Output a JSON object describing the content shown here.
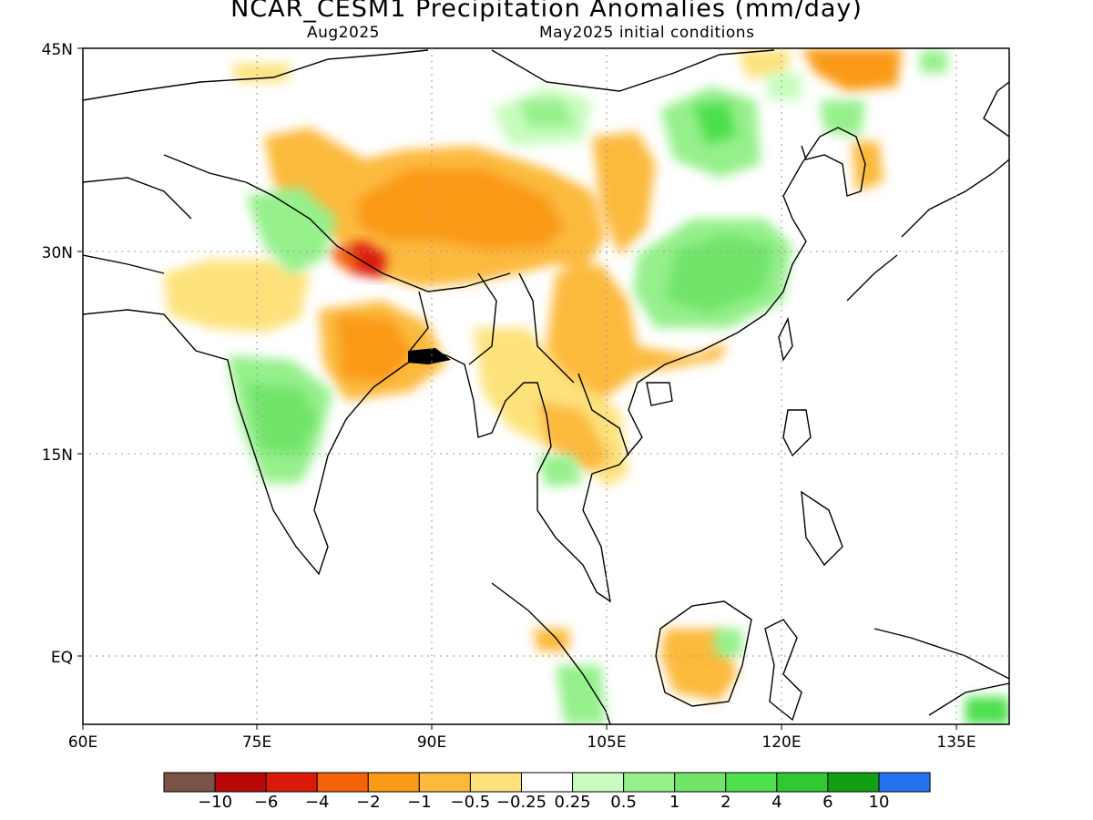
{
  "title": "NCAR_CESM1 Precipitation Anomalies (mm/day)",
  "subtitle_left": "Aug2025",
  "subtitle_right": "May2025 initial conditions",
  "map": {
    "lon_range": [
      60,
      140
    ],
    "lat_range": [
      -5,
      45
    ],
    "lon_ticks": [
      "60E",
      "75E",
      "90E",
      "105E",
      "120E",
      "135E"
    ],
    "lat_ticks": [
      "45N",
      "30N",
      "15N",
      "EQ"
    ]
  },
  "colorbar": {
    "colors": [
      "#7a5246",
      "#b80808",
      "#dc1a0a",
      "#f4620a",
      "#fa9a16",
      "#fcba3c",
      "#fde27c",
      "#ffffff",
      "#c8fcbe",
      "#96f08c",
      "#72e46a",
      "#4ee04e",
      "#32c832",
      "#12a012",
      "#2274ee"
    ],
    "labels": [
      "−10",
      "−6",
      "−4",
      "−2",
      "−1",
      "−0.5",
      "−0.25",
      "0.25",
      "0.5",
      "1",
      "2",
      "4",
      "6",
      "10"
    ]
  }
}
